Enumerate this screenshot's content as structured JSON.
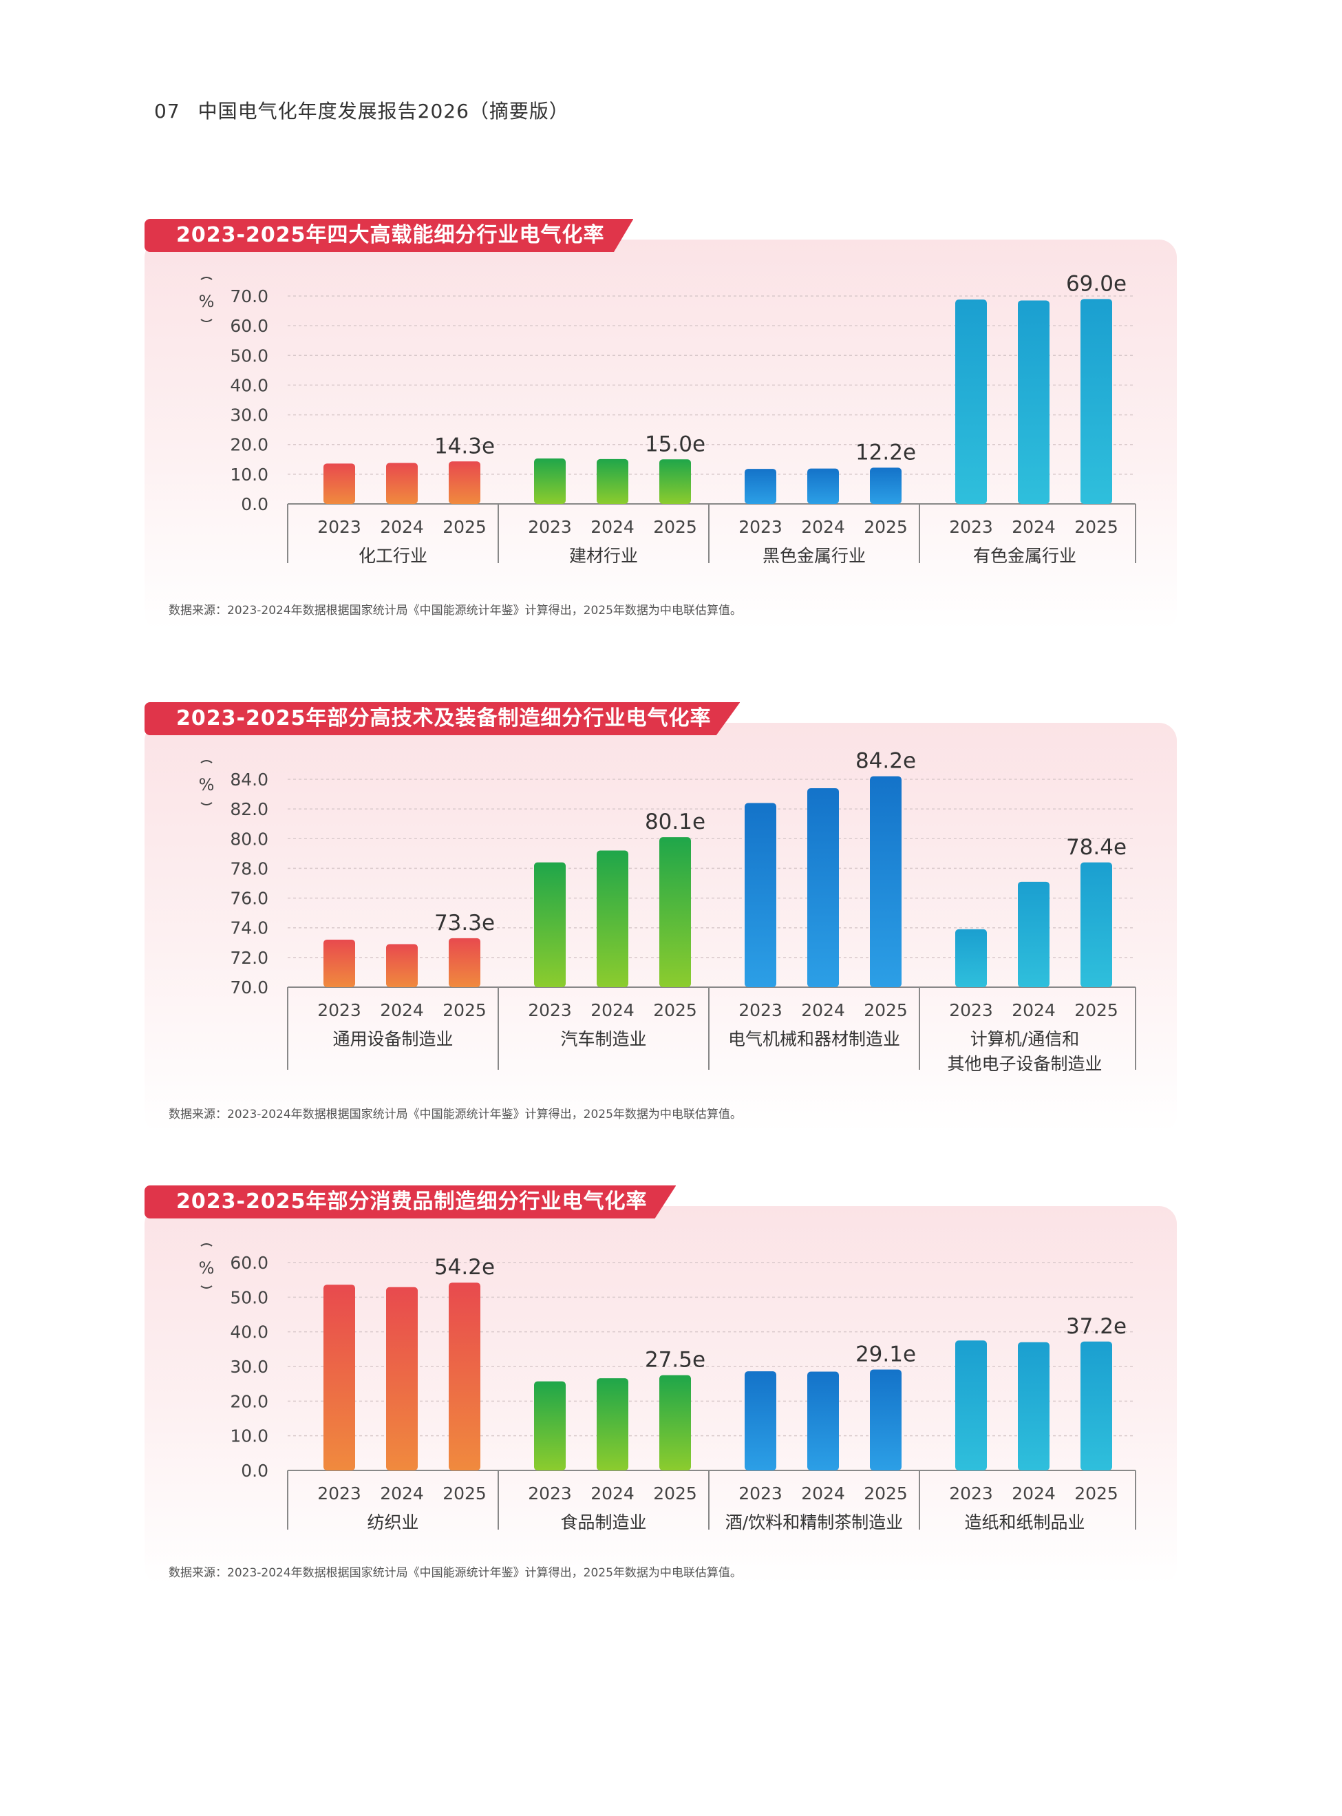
{
  "page": {
    "number": "07",
    "title": "中国电气化年度发展报告2026（摘要版）"
  },
  "colors": {
    "title_bg": "#e0354a",
    "groups": [
      [
        "#e84a4e",
        "#f08a3e"
      ],
      [
        "#1fa64a",
        "#8ccc2e"
      ],
      [
        "#1473c9",
        "#2c9fe6"
      ],
      [
        "#1b9fd0",
        "#2fbfdc"
      ]
    ]
  },
  "year_labels": [
    "2023",
    "2024",
    "2025"
  ],
  "chart_data": [
    {
      "type": "bar",
      "title": "2023-2025年四大高载能细分行业电气化率",
      "ylabel": "%",
      "ylim": [
        0,
        70
      ],
      "yticks": [
        "70.0",
        "60.0",
        "50.0",
        "40.0",
        "30.0",
        "20.0",
        "10.0",
        "0.0"
      ],
      "categories": [
        "化工行业",
        "建材行业",
        "黑色金属行业",
        "有色金属行业"
      ],
      "groups": [
        {
          "name": "化工行业",
          "values": [
            13.6,
            13.8,
            14.3
          ],
          "label": "14.3e"
        },
        {
          "name": "建材行业",
          "values": [
            15.3,
            15.1,
            15.0
          ],
          "label": "15.0e"
        },
        {
          "name": "黑色金属行业",
          "values": [
            11.8,
            11.9,
            12.2
          ],
          "label": "12.2e"
        },
        {
          "name": "有色金属行业",
          "values": [
            68.8,
            68.5,
            69.0
          ],
          "label": "69.0e"
        }
      ],
      "source": "数据来源：2023-2024年数据根据国家统计局《中国能源统计年鉴》计算得出，2025年数据为中电联估算值。"
    },
    {
      "type": "bar",
      "title": "2023-2025年部分高技术及装备制造细分行业电气化率",
      "ylabel": "%",
      "ylim": [
        70,
        84
      ],
      "yticks": [
        "84.0",
        "82.0",
        "80.0",
        "78.0",
        "76.0",
        "74.0",
        "72.0",
        "70.0"
      ],
      "categories": [
        "通用设备制造业",
        "汽车制造业",
        "电气机械和器材制造业",
        "计算机/通信和\n其他电子设备制造业"
      ],
      "groups": [
        {
          "name": "通用设备制造业",
          "values": [
            73.2,
            72.9,
            73.3
          ],
          "label": "73.3e"
        },
        {
          "name": "汽车制造业",
          "values": [
            78.4,
            79.2,
            80.1
          ],
          "label": "80.1e"
        },
        {
          "name": "电气机械和器材制造业",
          "values": [
            82.4,
            83.4,
            84.2
          ],
          "label": "84.2e"
        },
        {
          "name": "计算机/通信和其他电子设备制造业",
          "values": [
            73.9,
            77.1,
            78.4
          ],
          "label": "78.4e"
        }
      ],
      "source": "数据来源：2023-2024年数据根据国家统计局《中国能源统计年鉴》计算得出，2025年数据为中电联估算值。"
    },
    {
      "type": "bar",
      "title": "2023-2025年部分消费品制造细分行业电气化率",
      "ylabel": "%",
      "ylim": [
        0,
        60
      ],
      "yticks": [
        "60.0",
        "50.0",
        "40.0",
        "30.0",
        "20.0",
        "10.0",
        "0.0"
      ],
      "categories": [
        "纺织业",
        "食品制造业",
        "酒/饮料和精制茶制造业",
        "造纸和纸制品业"
      ],
      "groups": [
        {
          "name": "纺织业",
          "values": [
            53.6,
            52.9,
            54.2
          ],
          "label": "54.2e"
        },
        {
          "name": "食品制造业",
          "values": [
            25.7,
            26.6,
            27.5
          ],
          "label": "27.5e"
        },
        {
          "name": "酒/饮料和精制茶制造业",
          "values": [
            28.6,
            28.5,
            29.1
          ],
          "label": "29.1e"
        },
        {
          "name": "造纸和纸制品业",
          "values": [
            37.5,
            37.0,
            37.2
          ],
          "label": "37.2e"
        }
      ],
      "source": "数据来源：2023-2024年数据根据国家统计局《中国能源统计年鉴》计算得出，2025年数据为中电联估算值。"
    }
  ]
}
